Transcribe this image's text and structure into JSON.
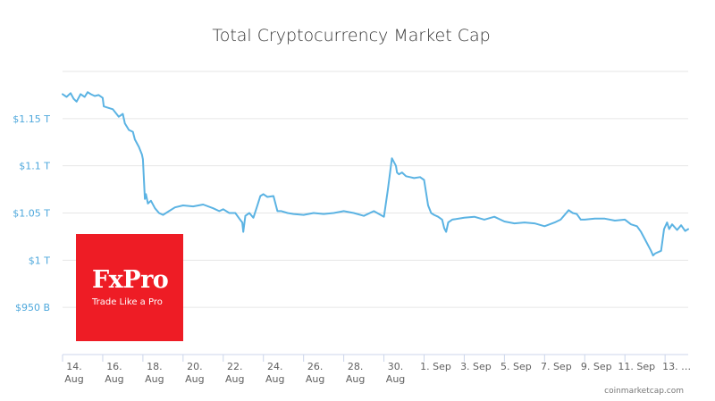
{
  "chart_data": {
    "type": "line",
    "title": "Total Cryptocurrency Market Cap",
    "xlabel": "",
    "ylabel": "",
    "ylim": [
      0.9,
      1.2
    ],
    "y_ticks": [
      {
        "value": 1.15,
        "label": "$1.15 T"
      },
      {
        "value": 1.1,
        "label": "$1.1 T"
      },
      {
        "value": 1.05,
        "label": "$1.05 T"
      },
      {
        "value": 1.0,
        "label": "$1 T"
      },
      {
        "value": 0.95,
        "label": "$950 B"
      }
    ],
    "x_ticks": [
      {
        "day": 0,
        "lines": [
          "14.",
          "Aug"
        ]
      },
      {
        "day": 2,
        "lines": [
          "16.",
          "Aug"
        ]
      },
      {
        "day": 4,
        "lines": [
          "18.",
          "Aug"
        ]
      },
      {
        "day": 6,
        "lines": [
          "20.",
          "Aug"
        ]
      },
      {
        "day": 8,
        "lines": [
          "22.",
          "Aug"
        ]
      },
      {
        "day": 10,
        "lines": [
          "24.",
          "Aug"
        ]
      },
      {
        "day": 12,
        "lines": [
          "26.",
          "Aug"
        ]
      },
      {
        "day": 14,
        "lines": [
          "28.",
          "Aug"
        ]
      },
      {
        "day": 16,
        "lines": [
          "30.",
          "Aug"
        ]
      },
      {
        "day": 18,
        "lines": [
          "1. Sep"
        ]
      },
      {
        "day": 20,
        "lines": [
          "3. Sep"
        ]
      },
      {
        "day": 22,
        "lines": [
          "5. Sep"
        ]
      },
      {
        "day": 24,
        "lines": [
          "7. Sep"
        ]
      },
      {
        "day": 26,
        "lines": [
          "9. Sep"
        ]
      },
      {
        "day": 28,
        "lines": [
          "11. Sep"
        ]
      },
      {
        "day": 30,
        "lines": [
          "13. …"
        ]
      }
    ],
    "xlim": [
      0,
      31.15
    ],
    "series": [
      {
        "name": "Total Cryptocurrency Market Cap",
        "color": "#5bb3e3",
        "x": [
          0.0,
          0.2,
          0.4,
          0.55,
          0.7,
          0.9,
          1.1,
          1.25,
          1.4,
          1.6,
          1.8,
          2.0,
          2.05,
          2.2,
          2.5,
          2.8,
          3.0,
          3.1,
          3.3,
          3.5,
          3.6,
          3.8,
          3.95,
          4.0,
          4.1,
          4.15,
          4.25,
          4.4,
          4.6,
          4.8,
          5.0,
          5.3,
          5.6,
          6.0,
          6.5,
          7.0,
          7.5,
          7.8,
          8.0,
          8.3,
          8.6,
          8.8,
          8.95,
          9.0,
          9.1,
          9.3,
          9.5,
          9.7,
          9.85,
          10.0,
          10.2,
          10.5,
          10.7,
          10.9,
          11.2,
          11.5,
          12.0,
          12.5,
          13.0,
          13.5,
          14.0,
          14.5,
          15.0,
          15.5,
          16.0,
          16.2,
          16.4,
          16.6,
          16.65,
          16.75,
          16.9,
          17.1,
          17.3,
          17.5,
          17.8,
          18.0,
          18.2,
          18.35,
          18.5,
          18.7,
          18.9,
          19.0,
          19.1,
          19.2,
          19.4,
          20.0,
          20.5,
          21.0,
          21.5,
          22.0,
          22.5,
          23.0,
          23.5,
          24.0,
          24.5,
          24.8,
          25.2,
          25.4,
          25.6,
          25.8,
          26.0,
          26.5,
          27.0,
          27.5,
          28.0,
          28.3,
          28.6,
          28.8,
          29.0,
          29.3,
          29.4,
          29.5,
          29.8,
          29.95,
          30.1,
          30.2,
          30.35,
          30.6,
          30.8,
          31.0,
          31.15
        ],
        "values": [
          1.176,
          1.173,
          1.177,
          1.171,
          1.168,
          1.176,
          1.173,
          1.178,
          1.176,
          1.174,
          1.175,
          1.172,
          1.163,
          1.162,
          1.16,
          1.152,
          1.155,
          1.145,
          1.138,
          1.136,
          1.128,
          1.12,
          1.112,
          1.107,
          1.065,
          1.07,
          1.06,
          1.063,
          1.055,
          1.05,
          1.048,
          1.052,
          1.056,
          1.058,
          1.057,
          1.059,
          1.055,
          1.052,
          1.054,
          1.05,
          1.05,
          1.044,
          1.04,
          1.03,
          1.047,
          1.05,
          1.045,
          1.058,
          1.068,
          1.07,
          1.067,
          1.068,
          1.052,
          1.052,
          1.05,
          1.049,
          1.048,
          1.05,
          1.049,
          1.05,
          1.052,
          1.05,
          1.047,
          1.052,
          1.046,
          1.075,
          1.108,
          1.1,
          1.093,
          1.091,
          1.093,
          1.089,
          1.088,
          1.087,
          1.088,
          1.085,
          1.058,
          1.05,
          1.048,
          1.046,
          1.043,
          1.034,
          1.03,
          1.04,
          1.043,
          1.045,
          1.046,
          1.043,
          1.046,
          1.041,
          1.039,
          1.04,
          1.039,
          1.036,
          1.04,
          1.043,
          1.053,
          1.05,
          1.049,
          1.043,
          1.043,
          1.044,
          1.044,
          1.042,
          1.043,
          1.038,
          1.036,
          1.03,
          1.022,
          1.01,
          1.005,
          1.007,
          1.01,
          1.033,
          1.04,
          1.033,
          1.038,
          1.032,
          1.037,
          1.031,
          1.033
        ]
      }
    ],
    "source_credit": "coinmarketcap.com"
  },
  "logo": {
    "brand": "FxPro",
    "tagline": "Trade Like a Pro",
    "color": "#ee1c25"
  }
}
